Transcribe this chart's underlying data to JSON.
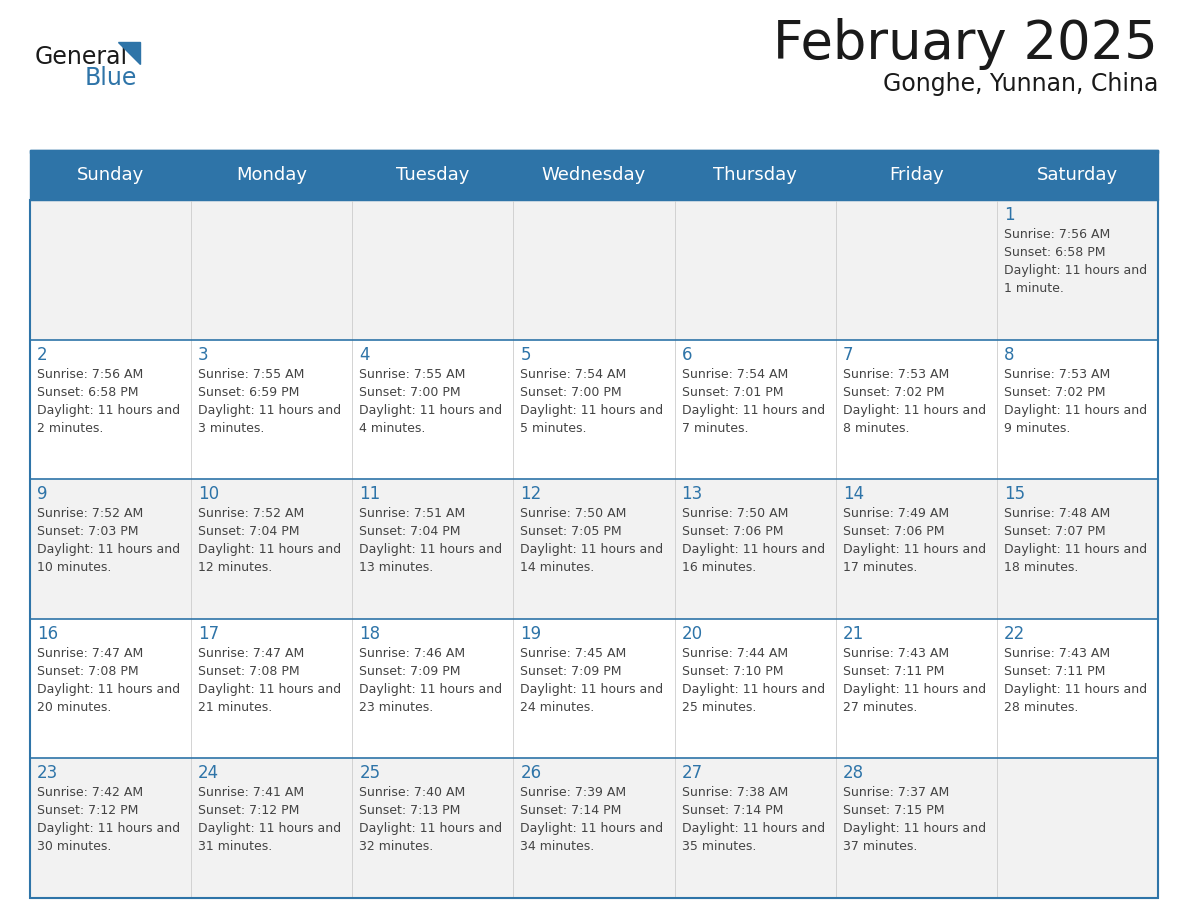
{
  "title": "February 2025",
  "subtitle": "Gonghe, Yunnan, China",
  "days_of_week": [
    "Sunday",
    "Monday",
    "Tuesday",
    "Wednesday",
    "Thursday",
    "Friday",
    "Saturday"
  ],
  "header_bg": "#2E74A8",
  "header_text": "#FFFFFF",
  "cell_bg_odd": "#F2F2F2",
  "cell_bg_even": "#FFFFFF",
  "day_num_color": "#2E74A8",
  "text_color": "#444444",
  "border_color": "#2E74A8",
  "title_color": "#1A1A1A",
  "subtitle_color": "#1A1A1A",
  "calendar_data": [
    [
      null,
      null,
      null,
      null,
      null,
      null,
      {
        "day": 1,
        "sunrise": "7:56 AM",
        "sunset": "6:58 PM",
        "daylight": "11 hours and 1 minute."
      }
    ],
    [
      {
        "day": 2,
        "sunrise": "7:56 AM",
        "sunset": "6:58 PM",
        "daylight": "11 hours and 2 minutes."
      },
      {
        "day": 3,
        "sunrise": "7:55 AM",
        "sunset": "6:59 PM",
        "daylight": "11 hours and 3 minutes."
      },
      {
        "day": 4,
        "sunrise": "7:55 AM",
        "sunset": "7:00 PM",
        "daylight": "11 hours and 4 minutes."
      },
      {
        "day": 5,
        "sunrise": "7:54 AM",
        "sunset": "7:00 PM",
        "daylight": "11 hours and 5 minutes."
      },
      {
        "day": 6,
        "sunrise": "7:54 AM",
        "sunset": "7:01 PM",
        "daylight": "11 hours and 7 minutes."
      },
      {
        "day": 7,
        "sunrise": "7:53 AM",
        "sunset": "7:02 PM",
        "daylight": "11 hours and 8 minutes."
      },
      {
        "day": 8,
        "sunrise": "7:53 AM",
        "sunset": "7:02 PM",
        "daylight": "11 hours and 9 minutes."
      }
    ],
    [
      {
        "day": 9,
        "sunrise": "7:52 AM",
        "sunset": "7:03 PM",
        "daylight": "11 hours and 10 minutes."
      },
      {
        "day": 10,
        "sunrise": "7:52 AM",
        "sunset": "7:04 PM",
        "daylight": "11 hours and 12 minutes."
      },
      {
        "day": 11,
        "sunrise": "7:51 AM",
        "sunset": "7:04 PM",
        "daylight": "11 hours and 13 minutes."
      },
      {
        "day": 12,
        "sunrise": "7:50 AM",
        "sunset": "7:05 PM",
        "daylight": "11 hours and 14 minutes."
      },
      {
        "day": 13,
        "sunrise": "7:50 AM",
        "sunset": "7:06 PM",
        "daylight": "11 hours and 16 minutes."
      },
      {
        "day": 14,
        "sunrise": "7:49 AM",
        "sunset": "7:06 PM",
        "daylight": "11 hours and 17 minutes."
      },
      {
        "day": 15,
        "sunrise": "7:48 AM",
        "sunset": "7:07 PM",
        "daylight": "11 hours and 18 minutes."
      }
    ],
    [
      {
        "day": 16,
        "sunrise": "7:47 AM",
        "sunset": "7:08 PM",
        "daylight": "11 hours and 20 minutes."
      },
      {
        "day": 17,
        "sunrise": "7:47 AM",
        "sunset": "7:08 PM",
        "daylight": "11 hours and 21 minutes."
      },
      {
        "day": 18,
        "sunrise": "7:46 AM",
        "sunset": "7:09 PM",
        "daylight": "11 hours and 23 minutes."
      },
      {
        "day": 19,
        "sunrise": "7:45 AM",
        "sunset": "7:09 PM",
        "daylight": "11 hours and 24 minutes."
      },
      {
        "day": 20,
        "sunrise": "7:44 AM",
        "sunset": "7:10 PM",
        "daylight": "11 hours and 25 minutes."
      },
      {
        "day": 21,
        "sunrise": "7:43 AM",
        "sunset": "7:11 PM",
        "daylight": "11 hours and 27 minutes."
      },
      {
        "day": 22,
        "sunrise": "7:43 AM",
        "sunset": "7:11 PM",
        "daylight": "11 hours and 28 minutes."
      }
    ],
    [
      {
        "day": 23,
        "sunrise": "7:42 AM",
        "sunset": "7:12 PM",
        "daylight": "11 hours and 30 minutes."
      },
      {
        "day": 24,
        "sunrise": "7:41 AM",
        "sunset": "7:12 PM",
        "daylight": "11 hours and 31 minutes."
      },
      {
        "day": 25,
        "sunrise": "7:40 AM",
        "sunset": "7:13 PM",
        "daylight": "11 hours and 32 minutes."
      },
      {
        "day": 26,
        "sunrise": "7:39 AM",
        "sunset": "7:14 PM",
        "daylight": "11 hours and 34 minutes."
      },
      {
        "day": 27,
        "sunrise": "7:38 AM",
        "sunset": "7:14 PM",
        "daylight": "11 hours and 35 minutes."
      },
      {
        "day": 28,
        "sunrise": "7:37 AM",
        "sunset": "7:15 PM",
        "daylight": "11 hours and 37 minutes."
      },
      null
    ]
  ],
  "logo_general_color": "#1A1A1A",
  "logo_blue_color": "#2E74A8"
}
